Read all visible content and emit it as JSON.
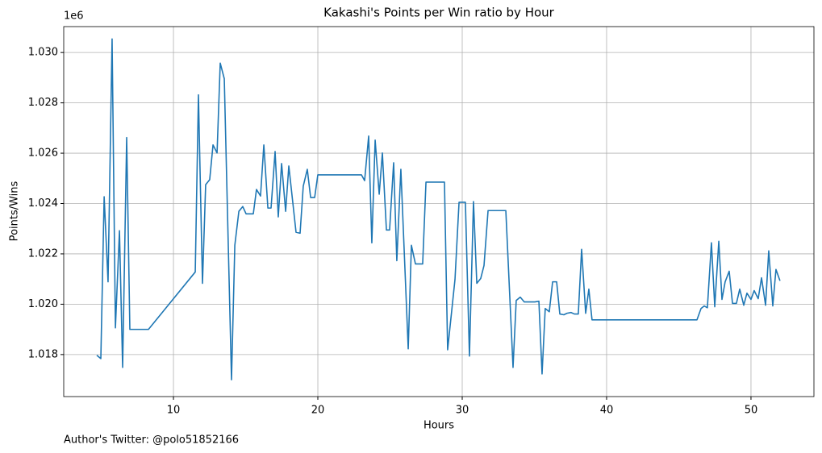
{
  "chart_data": {
    "type": "line",
    "title": "Kakashi's Points per Win ratio by Hour",
    "x_label": "Hours",
    "y_label": "Points/Wins",
    "y_offset_label": "1e6",
    "footnote": "Author's Twitter: @polo51852166",
    "color": "#1f77b4",
    "grid": true,
    "xlim": [
      2.4,
      54.36
    ],
    "ylim": [
      1.01633,
      1.03103
    ],
    "xticks": [
      10,
      20,
      30,
      40,
      50
    ],
    "yticks": [
      1.018,
      {
        "value": 1.02,
        "label": "1.020"
      },
      1.022,
      1.024,
      1.026,
      1.028,
      {
        "value": 1.03,
        "label": "1.030"
      }
    ],
    "x": [
      4.69,
      4.97,
      5.2,
      5.47,
      5.75,
      5.98,
      6.26,
      6.48,
      6.76,
      6.98,
      8.27,
      11.51,
      11.73,
      12.01,
      12.23,
      12.51,
      12.74,
      13.02,
      13.24,
      13.52,
      14.02,
      14.25,
      14.53,
      14.8,
      15.03,
      15.53,
      15.75,
      16.03,
      16.26,
      16.54,
      16.76,
      17.04,
      17.26,
      17.49,
      17.77,
      17.99,
      18.49,
      18.77,
      18.99,
      19.27,
      19.5,
      19.78,
      20.0,
      23.02,
      23.24,
      23.52,
      23.74,
      23.97,
      24.25,
      24.47,
      24.75,
      24.97,
      25.25,
      25.47,
      25.75,
      26.26,
      26.48,
      26.76,
      27.26,
      27.49,
      28.77,
      28.99,
      29.5,
      29.78,
      30.22,
      30.5,
      30.78,
      31.01,
      31.28,
      31.51,
      31.79,
      33.02,
      33.52,
      33.74,
      34.02,
      34.3,
      35.03,
      35.31,
      35.53,
      35.75,
      36.03,
      36.26,
      36.54,
      36.76,
      37.04,
      37.26,
      37.54,
      37.77,
      38.04,
      38.27,
      38.55,
      38.77,
      38.99,
      46.26,
      46.54,
      46.76,
      46.98,
      47.26,
      47.49,
      47.77,
      47.99,
      48.21,
      48.49,
      48.72,
      48.99,
      49.22,
      49.5,
      49.72,
      50.0,
      50.22,
      50.5,
      50.73,
      51.01,
      51.23,
      51.51,
      51.73,
      52.01
    ],
    "values": [
      1.01797,
      1.01784,
      1.02427,
      1.02089,
      1.03054,
      1.01906,
      1.02292,
      1.01749,
      1.02662,
      1.019,
      1.019,
      1.02128,
      1.02832,
      1.02083,
      1.02475,
      1.02495,
      1.02633,
      1.02601,
      1.02958,
      1.02896,
      1.017,
      1.02234,
      1.02369,
      1.02388,
      1.02359,
      1.02359,
      1.02456,
      1.0243,
      1.02633,
      1.02382,
      1.02382,
      1.02607,
      1.02347,
      1.02559,
      1.02369,
      1.02549,
      1.02286,
      1.02282,
      1.02469,
      1.02536,
      1.02424,
      1.02424,
      1.02514,
      1.02514,
      1.02491,
      1.02668,
      1.02244,
      1.02652,
      1.02437,
      1.02601,
      1.02295,
      1.02295,
      1.02562,
      1.02173,
      1.02536,
      1.01823,
      1.02234,
      1.0216,
      1.0216,
      1.02485,
      1.02485,
      1.01819,
      1.02099,
      1.02405,
      1.02405,
      1.01794,
      1.02408,
      1.02083,
      1.02102,
      1.02154,
      1.02372,
      1.02372,
      1.01749,
      1.02015,
      1.02028,
      1.02009,
      1.02009,
      1.02012,
      1.01723,
      1.01983,
      1.0197,
      1.02089,
      1.02089,
      1.01961,
      1.01958,
      1.01964,
      1.01967,
      1.01961,
      1.01961,
      1.02218,
      1.01964,
      1.0206,
      1.01938,
      1.01938,
      1.01983,
      1.01993,
      1.01986,
      1.02244,
      1.0199,
      1.0225,
      1.02019,
      1.02089,
      1.02131,
      1.02003,
      1.02003,
      1.0206,
      1.01996,
      1.02044,
      1.02019,
      1.02054,
      1.02022,
      1.02105,
      1.01996,
      1.02212,
      1.01993,
      1.02138,
      1.02093
    ]
  }
}
